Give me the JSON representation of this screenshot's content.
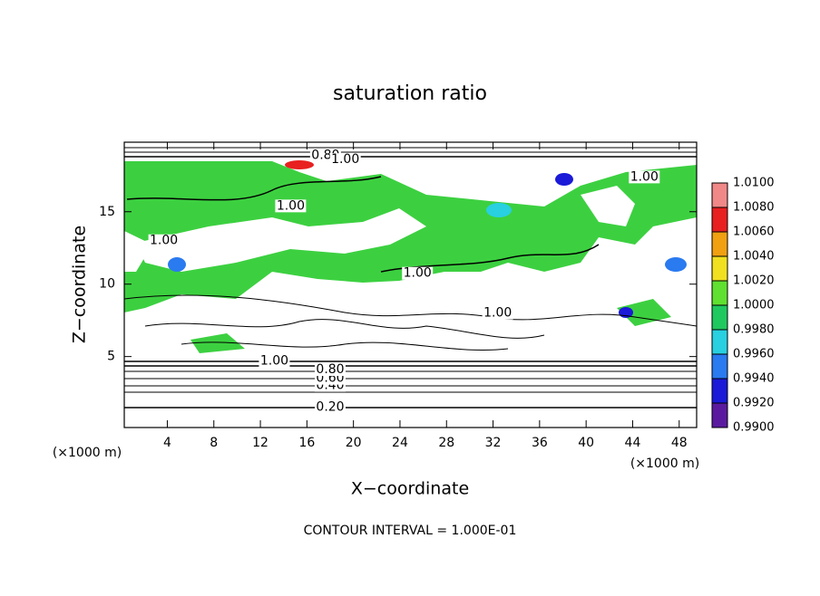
{
  "chart_data": {
    "type": "contour",
    "title": "saturation ratio",
    "x_label": "X−coordinate",
    "y_label": "Z−coordinate",
    "x_unit_label": "(×1000 m)",
    "y_unit_label": "(×1000 m)",
    "footer": "CONTOUR INTERVAL = 1.000E-01",
    "xlim": [
      0.3,
      49.5
    ],
    "xticks": [
      4,
      8,
      12,
      16,
      20,
      24,
      28,
      32,
      36,
      40,
      44,
      48
    ],
    "ylim": [
      0.1,
      19.8
    ],
    "yticks": [
      5,
      10,
      15
    ],
    "colorbar": {
      "lim": [
        0.99,
        1.01
      ],
      "ticks": [
        {
          "value": 0.99,
          "label": "0.9900"
        },
        {
          "value": 0.992,
          "label": "0.9920"
        },
        {
          "value": 0.994,
          "label": "0.9940"
        },
        {
          "value": 0.996,
          "label": "0.9960"
        },
        {
          "value": 0.998,
          "label": "0.9980"
        },
        {
          "value": 1.0,
          "label": "1.0000"
        },
        {
          "value": 1.002,
          "label": "1.0020"
        },
        {
          "value": 1.004,
          "label": "1.0040"
        },
        {
          "value": 1.006,
          "label": "1.0060"
        },
        {
          "value": 1.008,
          "label": "1.0080"
        },
        {
          "value": 1.01,
          "label": "1.0100"
        }
      ],
      "colors": [
        "#5a1aa0",
        "#1a1ad8",
        "#2a7af0",
        "#28d0e0",
        "#20c860",
        "#60e030",
        "#f0e020",
        "#f0a010",
        "#e82020",
        "#f08888"
      ]
    },
    "contours": [
      {
        "value": 0.2,
        "label": "0.20",
        "x": 18,
        "z": 1.5
      },
      {
        "value": 0.4,
        "label": "0.40",
        "x": 18,
        "z": 3.0
      },
      {
        "value": 0.6,
        "label": "0.60",
        "x": 18,
        "z": 3.5
      },
      {
        "value": 0.8,
        "label": "0.80",
        "x": 18,
        "z": 4.1
      },
      {
        "value": 1.0,
        "label": "1.00",
        "x": 13.2,
        "z": 4.7
      },
      {
        "value": 0.8,
        "label": "0.80",
        "x": 17.6,
        "z": 18.9
      },
      {
        "value": 1.0,
        "label": "1.00",
        "x": 19.3,
        "z": 18.6
      },
      {
        "value": 1.0,
        "label": "1.00",
        "x": 45,
        "z": 17.4
      },
      {
        "value": 1.0,
        "label": "1.00",
        "x": 3.7,
        "z": 13
      },
      {
        "value": 1.0,
        "label": "1.00",
        "x": 14.6,
        "z": 15.4
      },
      {
        "value": 1.0,
        "label": "1.00",
        "x": 25.5,
        "z": 10.75
      },
      {
        "value": 1.0,
        "label": "1.00",
        "x": 32.4,
        "z": 8
      }
    ]
  }
}
